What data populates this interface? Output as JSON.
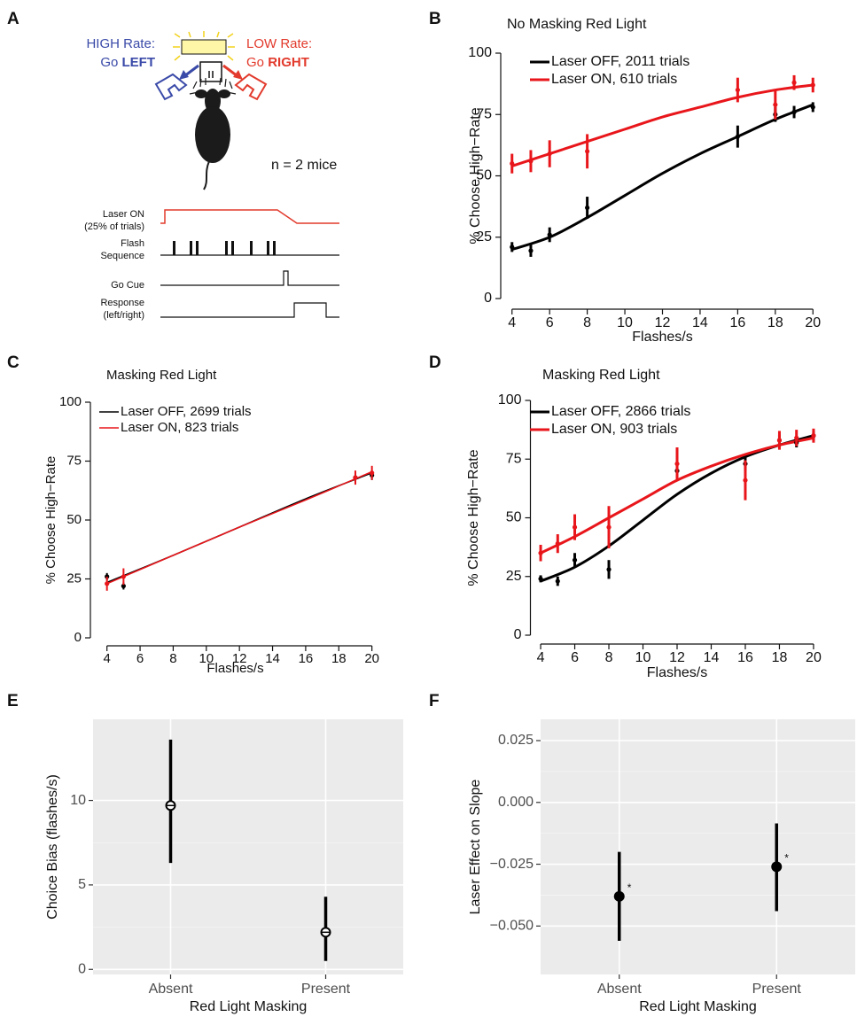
{
  "panel_a": {
    "label": "A",
    "high_rate": {
      "line1": "HIGH Rate:",
      "go": "Go",
      "side": "LEFT"
    },
    "low_rate": {
      "line1": "LOW Rate:",
      "go": "Go",
      "side": "RIGHT"
    },
    "n_mice": "n = 2 mice",
    "timeline_labels": [
      [
        "Laser ON",
        "(25% of trials)"
      ],
      [
        "Flash",
        "Sequence"
      ],
      [
        "Go Cue"
      ],
      [
        "Response",
        "(left/right)"
      ]
    ]
  },
  "chart_data": [
    {
      "panel": "B",
      "type": "scatter",
      "title": "No Masking Red Light",
      "x_label": "Flashes/s",
      "y_label": "% Choose High−Rate",
      "xlim": [
        3.4,
        20.6
      ],
      "ylim": [
        0,
        100
      ],
      "xticks": [
        4,
        6,
        8,
        10,
        12,
        14,
        16,
        18,
        20
      ],
      "yticks": [
        0,
        25,
        50,
        75,
        100
      ],
      "legend": "top-left",
      "series": [
        {
          "name": "Laser OFF, 2011 trials",
          "color": "#000000",
          "x": [
            4,
            5,
            6,
            8,
            16,
            18,
            19,
            20
          ],
          "values": [
            21,
            19.5,
            26,
            37,
            66,
            75,
            76,
            78
          ],
          "errors": [
            2,
            2.5,
            3,
            4.5,
            4.5,
            3,
            2.5,
            2
          ],
          "fit_x": [
            4,
            6,
            8,
            10,
            12,
            14,
            16,
            18,
            20
          ],
          "fit_values": [
            20,
            25,
            33,
            42,
            51,
            59,
            66,
            73,
            79
          ]
        },
        {
          "name": "Laser ON, 610 trials",
          "color": "#e8161b",
          "x": [
            4,
            5,
            6,
            8,
            16,
            18,
            19,
            20
          ],
          "values": [
            55,
            56,
            59,
            60,
            85,
            79,
            88,
            87
          ],
          "errors": [
            4,
            4.5,
            5.5,
            7,
            5,
            6,
            3,
            3
          ],
          "fit_x": [
            4,
            6,
            8,
            10,
            12,
            14,
            16,
            18,
            20
          ],
          "fit_values": [
            54,
            59,
            64,
            69,
            74,
            78,
            82,
            85,
            87
          ]
        }
      ]
    },
    {
      "panel": "C",
      "type": "scatter",
      "title": "Masking Red Light",
      "x_label": "Flashes/s",
      "y_label": "% Choose High−Rate",
      "xlim": [
        3,
        20.5
      ],
      "ylim": [
        0,
        100
      ],
      "xticks": [
        4,
        6,
        8,
        10,
        12,
        14,
        16,
        18,
        20
      ],
      "yticks": [
        0,
        25,
        50,
        75,
        100
      ],
      "legend": "top-left",
      "series": [
        {
          "name": "Laser OFF, 2699 trials",
          "color": "#000000",
          "x": [
            4,
            5,
            19,
            20
          ],
          "values": [
            26,
            22,
            68,
            69
          ],
          "errors": [
            1.5,
            1.5,
            2.5,
            2
          ],
          "fit_x": [
            4,
            8,
            12,
            16,
            20
          ],
          "fit_values": [
            23.5,
            35,
            47,
            59,
            70
          ]
        },
        {
          "name": "Laser ON, 823 trials",
          "color": "#e8161b",
          "x": [
            4,
            5,
            19,
            20
          ],
          "values": [
            23,
            26,
            68,
            70
          ],
          "errors": [
            3,
            3.5,
            3,
            3
          ],
          "fit_x": [
            4,
            8,
            12,
            16,
            20
          ],
          "fit_values": [
            23,
            35,
            47,
            58.5,
            70.5
          ]
        }
      ]
    },
    {
      "panel": "D",
      "type": "scatter",
      "title": "Masking Red Light",
      "x_label": "Flashes/s",
      "y_label": "% Choose High−Rate",
      "xlim": [
        3.4,
        20.6
      ],
      "ylim": [
        0,
        100
      ],
      "xticks": [
        4,
        6,
        8,
        10,
        12,
        14,
        16,
        18,
        20
      ],
      "yticks": [
        0,
        25,
        50,
        75,
        100
      ],
      "legend": "top-left",
      "series": [
        {
          "name": "Laser OFF, 2866 trials",
          "color": "#000000",
          "x": [
            4,
            5,
            6,
            8,
            12,
            16,
            18,
            19,
            20
          ],
          "values": [
            24,
            23,
            32,
            28,
            70,
            73,
            83,
            82,
            85
          ],
          "errors": [
            1.5,
            2,
            3,
            4,
            3,
            3,
            2.5,
            2,
            2
          ],
          "fit_x": [
            4,
            6,
            8,
            10,
            12,
            14,
            16,
            18,
            20
          ],
          "fit_values": [
            23,
            29,
            38,
            49,
            60,
            69,
            76,
            81,
            85
          ]
        },
        {
          "name": "Laser ON, 903 trials",
          "color": "#e8161b",
          "x": [
            4,
            5,
            6,
            8,
            12,
            16,
            18,
            19,
            20
          ],
          "values": [
            35,
            39,
            46,
            46,
            73,
            66,
            83,
            84,
            85
          ],
          "errors": [
            3.5,
            4,
            5.5,
            9,
            7,
            8.5,
            4,
            3.5,
            3
          ],
          "fit_x": [
            4,
            6,
            8,
            10,
            12,
            14,
            16,
            18,
            20
          ],
          "fit_values": [
            35,
            42,
            50,
            58,
            66,
            72,
            77,
            81,
            84
          ]
        }
      ]
    },
    {
      "panel": "E",
      "type": "pointrange",
      "x_label": "Red Light Masking",
      "y_label": "Choice Bias (flashes/s)",
      "categories": [
        "Absent",
        "Present"
      ],
      "values": [
        9.7,
        2.2
      ],
      "lower": [
        6.3,
        0.5
      ],
      "upper": [
        13.6,
        4.3
      ],
      "ylim": [
        -0.3,
        14.8
      ],
      "yticks": [
        0,
        5,
        10
      ],
      "grid": true,
      "marker": "open",
      "color": "#000000"
    },
    {
      "panel": "F",
      "type": "pointrange",
      "x_label": "Red Light Masking",
      "y_label": "Laser Effect on Slope",
      "categories": [
        "Absent",
        "Present"
      ],
      "values": [
        -0.038,
        -0.026
      ],
      "lower": [
        -0.056,
        -0.044
      ],
      "upper": [
        -0.02,
        -0.0085
      ],
      "annotations": [
        "*",
        "*"
      ],
      "ylim": [
        -0.0696,
        0.0336
      ],
      "yticks": [
        {
          "value": 0.025,
          "label": "0.025"
        },
        {
          "value": 0,
          "label": "0.000"
        },
        {
          "value": -0.025,
          "label": "−0.025"
        },
        {
          "value": -0.05,
          "label": "−0.050"
        }
      ],
      "grid": true,
      "marker": "filled",
      "color": "#000000"
    }
  ]
}
